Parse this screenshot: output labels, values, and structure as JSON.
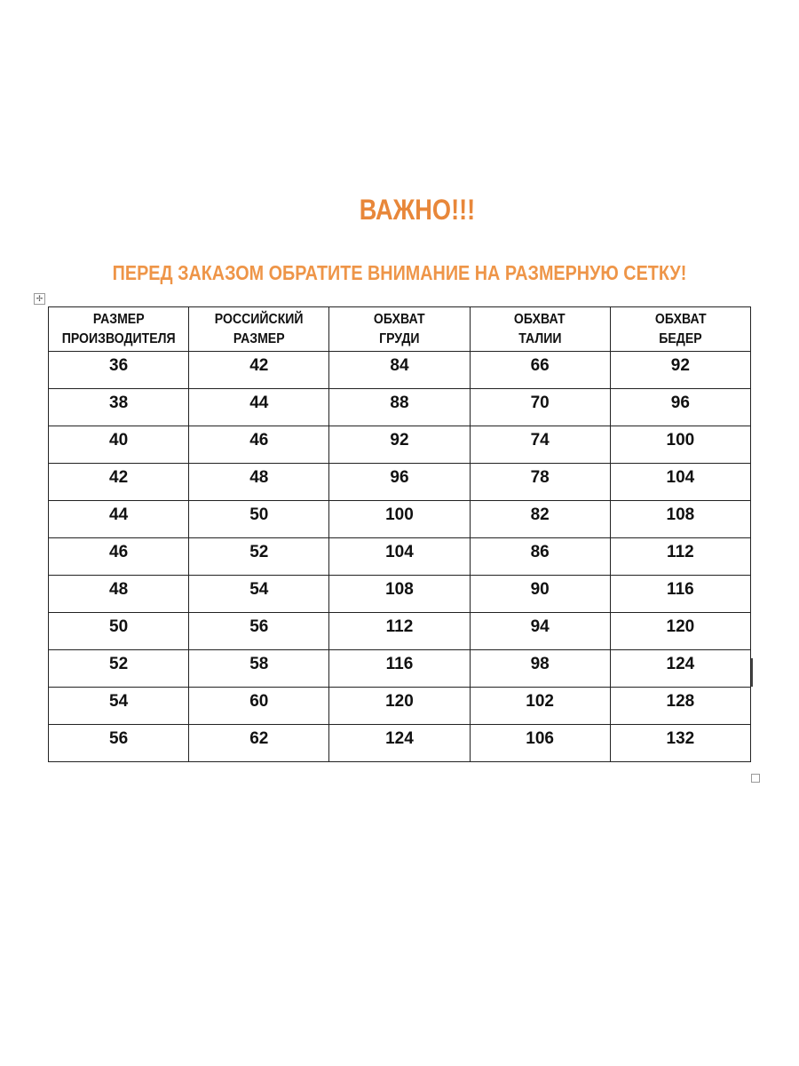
{
  "title": "ВАЖНО!!!",
  "subtitle": "ПЕРЕД ЗАКАЗОМ ОБРАТИТЕ ВНИМАНИЕ НА РАЗМЕРНУЮ СЕТКУ!",
  "accent_color": "#E8873A",
  "table": {
    "headers": [
      [
        "РАЗМЕР",
        "ПРОИЗВОДИТЕЛЯ"
      ],
      [
        "РОССИЙСКИЙ",
        "РАЗМЕР"
      ],
      [
        "ОБХВАТ",
        "ГРУДИ"
      ],
      [
        "ОБХВАТ",
        "ТАЛИИ"
      ],
      [
        "ОБХВАТ",
        "БЕДЕР"
      ]
    ],
    "rows": [
      [
        "36",
        "42",
        "84",
        "66",
        "92"
      ],
      [
        "38",
        "44",
        "88",
        "70",
        "96"
      ],
      [
        "40",
        "46",
        "92",
        "74",
        "100"
      ],
      [
        "42",
        "48",
        "96",
        "78",
        "104"
      ],
      [
        "44",
        "50",
        "100",
        "82",
        "108"
      ],
      [
        "46",
        "52",
        "104",
        "86",
        "112"
      ],
      [
        "48",
        "54",
        "108",
        "90",
        "116"
      ],
      [
        "50",
        "56",
        "112",
        "94",
        "120"
      ],
      [
        "52",
        "58",
        "116",
        "98",
        "124"
      ],
      [
        "54",
        "60",
        "120",
        "102",
        "128"
      ],
      [
        "56",
        "62",
        "124",
        "106",
        "132"
      ]
    ]
  }
}
